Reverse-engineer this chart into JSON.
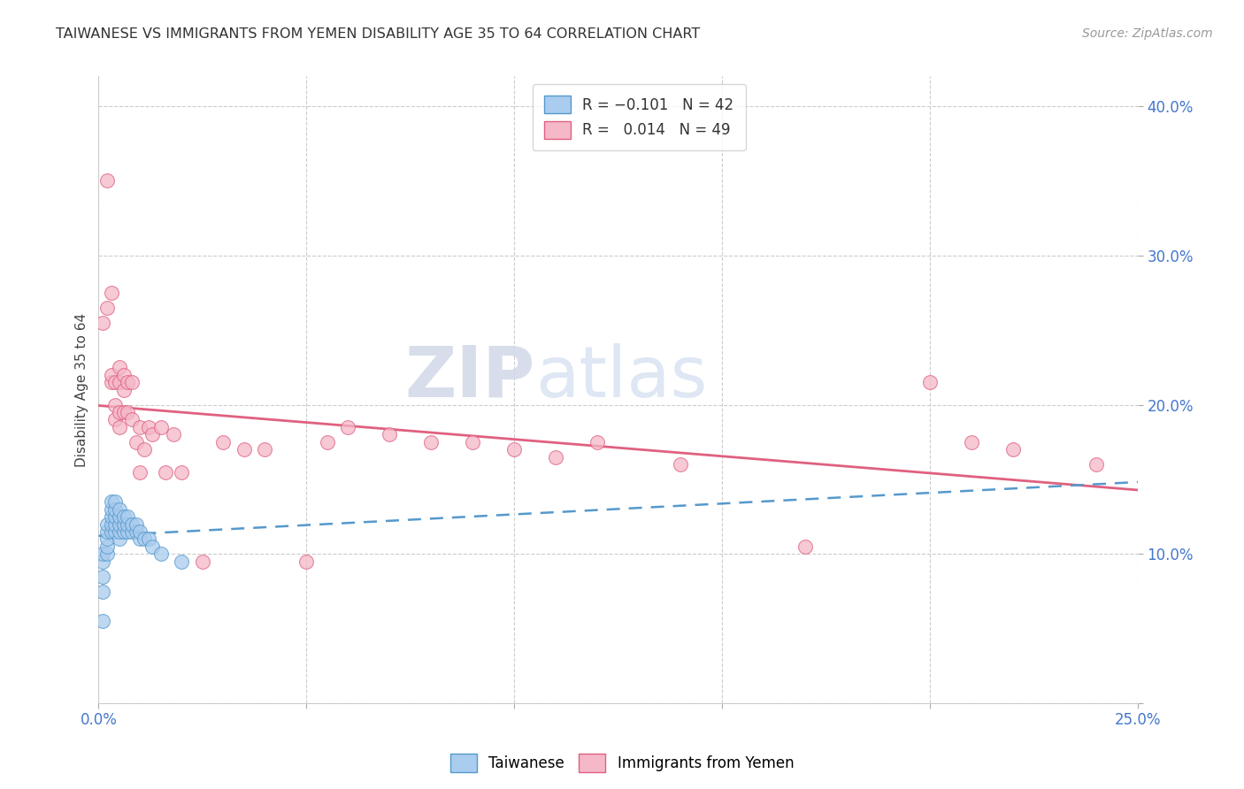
{
  "title": "TAIWANESE VS IMMIGRANTS FROM YEMEN DISABILITY AGE 35 TO 64 CORRELATION CHART",
  "source": "Source: ZipAtlas.com",
  "ylabel": "Disability Age 35 to 64",
  "xlim": [
    0.0,
    0.25
  ],
  "ylim": [
    0.0,
    0.42
  ],
  "xticks": [
    0.0,
    0.05,
    0.1,
    0.15,
    0.2,
    0.25
  ],
  "yticks": [
    0.0,
    0.1,
    0.2,
    0.3,
    0.4
  ],
  "ytick_labels": [
    "",
    "10.0%",
    "20.0%",
    "30.0%",
    "40.0%"
  ],
  "xtick_labels": [
    "0.0%",
    "",
    "",
    "",
    "",
    "25.0%"
  ],
  "taiwanese_color": "#aaccee",
  "yemen_color": "#f4b8c8",
  "trend_taiwan_color": "#5599cc",
  "trend_yemen_color": "#e06080",
  "background_color": "#ffffff",
  "grid_color": "#cccccc",
  "watermark_zip": "ZIP",
  "watermark_atlas": "atlas",
  "taiwanese_x": [
    0.001,
    0.001,
    0.001,
    0.001,
    0.001,
    0.002,
    0.002,
    0.002,
    0.002,
    0.002,
    0.003,
    0.003,
    0.003,
    0.003,
    0.003,
    0.004,
    0.004,
    0.004,
    0.004,
    0.004,
    0.005,
    0.005,
    0.005,
    0.005,
    0.005,
    0.006,
    0.006,
    0.006,
    0.007,
    0.007,
    0.007,
    0.008,
    0.008,
    0.009,
    0.009,
    0.01,
    0.01,
    0.011,
    0.012,
    0.013,
    0.015,
    0.02
  ],
  "taiwanese_y": [
    0.055,
    0.075,
    0.085,
    0.095,
    0.1,
    0.1,
    0.105,
    0.11,
    0.115,
    0.12,
    0.115,
    0.12,
    0.125,
    0.13,
    0.135,
    0.115,
    0.12,
    0.125,
    0.13,
    0.135,
    0.11,
    0.115,
    0.12,
    0.125,
    0.13,
    0.115,
    0.12,
    0.125,
    0.115,
    0.12,
    0.125,
    0.115,
    0.12,
    0.115,
    0.12,
    0.11,
    0.115,
    0.11,
    0.11,
    0.105,
    0.1,
    0.095
  ],
  "yemen_x": [
    0.001,
    0.002,
    0.002,
    0.003,
    0.003,
    0.003,
    0.004,
    0.004,
    0.004,
    0.005,
    0.005,
    0.005,
    0.005,
    0.006,
    0.006,
    0.006,
    0.007,
    0.007,
    0.008,
    0.008,
    0.009,
    0.01,
    0.01,
    0.011,
    0.012,
    0.013,
    0.015,
    0.016,
    0.018,
    0.02,
    0.025,
    0.03,
    0.035,
    0.04,
    0.05,
    0.055,
    0.06,
    0.07,
    0.08,
    0.09,
    0.1,
    0.11,
    0.12,
    0.14,
    0.17,
    0.2,
    0.21,
    0.22,
    0.24
  ],
  "yemen_y": [
    0.255,
    0.35,
    0.265,
    0.215,
    0.275,
    0.22,
    0.215,
    0.2,
    0.19,
    0.225,
    0.215,
    0.195,
    0.185,
    0.22,
    0.21,
    0.195,
    0.215,
    0.195,
    0.215,
    0.19,
    0.175,
    0.185,
    0.155,
    0.17,
    0.185,
    0.18,
    0.185,
    0.155,
    0.18,
    0.155,
    0.095,
    0.175,
    0.17,
    0.17,
    0.095,
    0.175,
    0.185,
    0.18,
    0.175,
    0.175,
    0.17,
    0.165,
    0.175,
    0.16,
    0.105,
    0.215,
    0.175,
    0.17,
    0.16
  ]
}
